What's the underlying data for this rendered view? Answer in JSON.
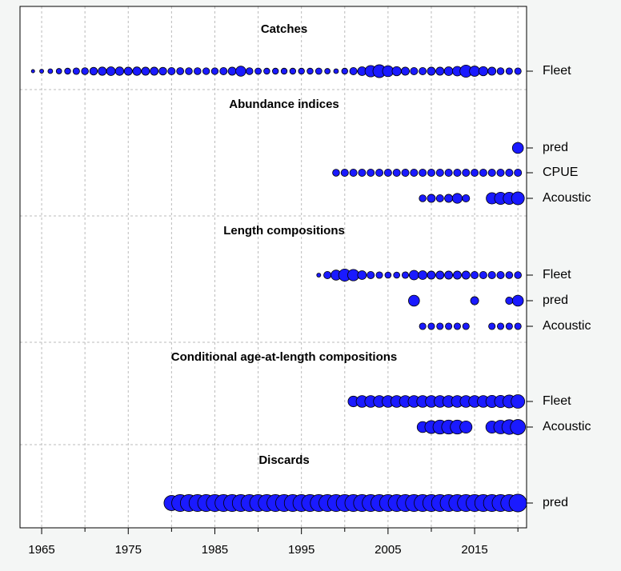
{
  "chart_data": {
    "type": "scatter",
    "title": "",
    "xlabel": "",
    "ylabel": "",
    "xlim": [
      1962.5,
      2021.0
    ],
    "x_ticks": [
      1965,
      1975,
      1985,
      1995,
      2005,
      2015
    ],
    "grid": true,
    "colors": {
      "point_fill": "#1a1aff",
      "point_stroke": "#000000",
      "grid": "#bbbbbb",
      "background": "#ffffff"
    },
    "panels": [
      {
        "title": "Catches",
        "rows": [
          {
            "label": "Fleet",
            "points": [
              [
                1964,
                0.18
              ],
              [
                1965,
                0.22
              ],
              [
                1966,
                0.26
              ],
              [
                1967,
                0.3
              ],
              [
                1968,
                0.33
              ],
              [
                1969,
                0.36
              ],
              [
                1970,
                0.38
              ],
              [
                1971,
                0.42
              ],
              [
                1972,
                0.45
              ],
              [
                1973,
                0.48
              ],
              [
                1974,
                0.46
              ],
              [
                1975,
                0.44
              ],
              [
                1976,
                0.46
              ],
              [
                1977,
                0.44
              ],
              [
                1978,
                0.44
              ],
              [
                1979,
                0.42
              ],
              [
                1980,
                0.4
              ],
              [
                1981,
                0.39
              ],
              [
                1982,
                0.38
              ],
              [
                1983,
                0.38
              ],
              [
                1984,
                0.37
              ],
              [
                1985,
                0.37
              ],
              [
                1986,
                0.4
              ],
              [
                1987,
                0.44
              ],
              [
                1988,
                0.55
              ],
              [
                1989,
                0.38
              ],
              [
                1990,
                0.35
              ],
              [
                1991,
                0.33
              ],
              [
                1992,
                0.33
              ],
              [
                1993,
                0.33
              ],
              [
                1994,
                0.33
              ],
              [
                1995,
                0.33
              ],
              [
                1996,
                0.33
              ],
              [
                1997,
                0.35
              ],
              [
                1998,
                0.3
              ],
              [
                1999,
                0.26
              ],
              [
                2000,
                0.33
              ],
              [
                2001,
                0.4
              ],
              [
                2002,
                0.48
              ],
              [
                2003,
                0.62
              ],
              [
                2004,
                0.7
              ],
              [
                2005,
                0.6
              ],
              [
                2006,
                0.5
              ],
              [
                2007,
                0.44
              ],
              [
                2008,
                0.4
              ],
              [
                2009,
                0.4
              ],
              [
                2010,
                0.44
              ],
              [
                2011,
                0.44
              ],
              [
                2012,
                0.48
              ],
              [
                2013,
                0.52
              ],
              [
                2014,
                0.66
              ],
              [
                2015,
                0.56
              ],
              [
                2016,
                0.5
              ],
              [
                2017,
                0.44
              ],
              [
                2018,
                0.38
              ],
              [
                2019,
                0.36
              ],
              [
                2020,
                0.36
              ]
            ]
          }
        ]
      },
      {
        "title": "Abundance indices",
        "rows": [
          {
            "label": "pred",
            "points": [
              [
                2020,
                0.6
              ]
            ]
          },
          {
            "label": "CPUE",
            "points": [
              [
                1999,
                0.38
              ],
              [
                2000,
                0.4
              ],
              [
                2001,
                0.4
              ],
              [
                2002,
                0.4
              ],
              [
                2003,
                0.4
              ],
              [
                2004,
                0.4
              ],
              [
                2005,
                0.4
              ],
              [
                2006,
                0.4
              ],
              [
                2007,
                0.4
              ],
              [
                2008,
                0.4
              ],
              [
                2009,
                0.4
              ],
              [
                2010,
                0.4
              ],
              [
                2011,
                0.4
              ],
              [
                2012,
                0.4
              ],
              [
                2013,
                0.4
              ],
              [
                2014,
                0.4
              ],
              [
                2015,
                0.4
              ],
              [
                2016,
                0.4
              ],
              [
                2017,
                0.4
              ],
              [
                2018,
                0.4
              ],
              [
                2019,
                0.4
              ],
              [
                2020,
                0.4
              ]
            ]
          },
          {
            "label": "Acoustic",
            "points": [
              [
                2009,
                0.38
              ],
              [
                2010,
                0.44
              ],
              [
                2011,
                0.4
              ],
              [
                2012,
                0.44
              ],
              [
                2013,
                0.54
              ],
              [
                2014,
                0.4
              ],
              [
                2017,
                0.62
              ],
              [
                2018,
                0.66
              ],
              [
                2019,
                0.66
              ],
              [
                2020,
                0.7
              ]
            ]
          }
        ]
      },
      {
        "title": "Length compositions",
        "rows": [
          {
            "label": "Fleet",
            "points": [
              [
                1997,
                0.22
              ],
              [
                1998,
                0.4
              ],
              [
                1999,
                0.55
              ],
              [
                2000,
                0.66
              ],
              [
                2001,
                0.62
              ],
              [
                2002,
                0.48
              ],
              [
                2003,
                0.4
              ],
              [
                2004,
                0.36
              ],
              [
                2005,
                0.34
              ],
              [
                2006,
                0.34
              ],
              [
                2007,
                0.36
              ],
              [
                2008,
                0.52
              ],
              [
                2009,
                0.48
              ],
              [
                2010,
                0.44
              ],
              [
                2011,
                0.44
              ],
              [
                2012,
                0.44
              ],
              [
                2013,
                0.44
              ],
              [
                2014,
                0.44
              ],
              [
                2015,
                0.4
              ],
              [
                2016,
                0.4
              ],
              [
                2017,
                0.4
              ],
              [
                2018,
                0.4
              ],
              [
                2019,
                0.38
              ],
              [
                2020,
                0.38
              ]
            ]
          },
          {
            "label": "pred",
            "points": [
              [
                2008,
                0.6
              ],
              [
                2015,
                0.44
              ],
              [
                2019,
                0.4
              ],
              [
                2020,
                0.6
              ]
            ]
          },
          {
            "label": "Acoustic",
            "points": [
              [
                2009,
                0.36
              ],
              [
                2010,
                0.36
              ],
              [
                2011,
                0.36
              ],
              [
                2012,
                0.36
              ],
              [
                2013,
                0.36
              ],
              [
                2014,
                0.36
              ],
              [
                2017,
                0.36
              ],
              [
                2018,
                0.36
              ],
              [
                2019,
                0.36
              ],
              [
                2020,
                0.36
              ]
            ]
          }
        ]
      },
      {
        "title": "Conditional age-at-length compositions",
        "rows": [
          {
            "label": "Fleet",
            "points": [
              [
                2001,
                0.58
              ],
              [
                2002,
                0.64
              ],
              [
                2003,
                0.64
              ],
              [
                2004,
                0.64
              ],
              [
                2005,
                0.64
              ],
              [
                2006,
                0.64
              ],
              [
                2007,
                0.64
              ],
              [
                2008,
                0.64
              ],
              [
                2009,
                0.64
              ],
              [
                2010,
                0.64
              ],
              [
                2011,
                0.64
              ],
              [
                2012,
                0.64
              ],
              [
                2013,
                0.64
              ],
              [
                2014,
                0.64
              ],
              [
                2015,
                0.64
              ],
              [
                2016,
                0.64
              ],
              [
                2017,
                0.66
              ],
              [
                2018,
                0.66
              ],
              [
                2019,
                0.7
              ],
              [
                2020,
                0.74
              ]
            ]
          },
          {
            "label": "Acoustic",
            "points": [
              [
                2009,
                0.6
              ],
              [
                2010,
                0.7
              ],
              [
                2011,
                0.76
              ],
              [
                2012,
                0.76
              ],
              [
                2013,
                0.76
              ],
              [
                2014,
                0.66
              ],
              [
                2017,
                0.66
              ],
              [
                2018,
                0.74
              ],
              [
                2019,
                0.8
              ],
              [
                2020,
                0.82
              ]
            ]
          }
        ]
      },
      {
        "title": "Discards",
        "rows": [
          {
            "label": "pred",
            "points": [
              [
                1980,
                0.82
              ],
              [
                1981,
                0.92
              ],
              [
                1982,
                0.92
              ],
              [
                1983,
                0.92
              ],
              [
                1984,
                0.92
              ],
              [
                1985,
                0.92
              ],
              [
                1986,
                0.92
              ],
              [
                1987,
                0.92
              ],
              [
                1988,
                0.92
              ],
              [
                1989,
                0.92
              ],
              [
                1990,
                0.92
              ],
              [
                1991,
                0.92
              ],
              [
                1992,
                0.92
              ],
              [
                1993,
                0.92
              ],
              [
                1994,
                0.92
              ],
              [
                1995,
                0.92
              ],
              [
                1996,
                0.92
              ],
              [
                1997,
                0.92
              ],
              [
                1998,
                0.92
              ],
              [
                1999,
                0.92
              ],
              [
                2000,
                0.92
              ],
              [
                2001,
                0.92
              ],
              [
                2002,
                0.92
              ],
              [
                2003,
                0.92
              ],
              [
                2004,
                0.92
              ],
              [
                2005,
                0.92
              ],
              [
                2006,
                0.92
              ],
              [
                2007,
                0.92
              ],
              [
                2008,
                0.92
              ],
              [
                2009,
                0.92
              ],
              [
                2010,
                0.92
              ],
              [
                2011,
                0.92
              ],
              [
                2012,
                0.92
              ],
              [
                2013,
                0.92
              ],
              [
                2014,
                0.92
              ],
              [
                2015,
                0.92
              ],
              [
                2016,
                0.92
              ],
              [
                2017,
                0.92
              ],
              [
                2018,
                0.92
              ],
              [
                2019,
                0.92
              ],
              [
                2020,
                0.96
              ]
            ]
          }
        ]
      }
    ]
  }
}
